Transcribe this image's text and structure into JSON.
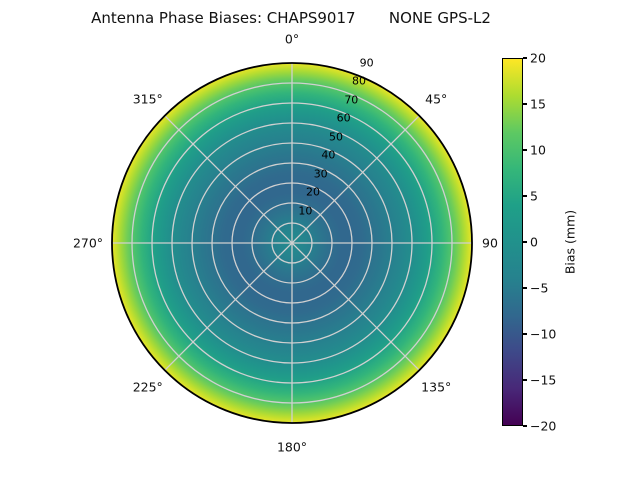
{
  "title": "Antenna Phase Biases: CHAPS9017       NONE GPS-L2",
  "chart_data": {
    "type": "heatmap",
    "projection": "polar",
    "title": "Antenna Phase Biases: CHAPS9017       NONE GPS-L2",
    "station": "CHAPS9017",
    "signal": "NONE GPS-L2",
    "grid": true,
    "angular_tick_labels": [
      "0°",
      "45°",
      "90",
      "135°",
      "180°",
      "225°",
      "270°",
      "315°"
    ],
    "angular_tick_degrees": [
      0,
      45,
      90,
      135,
      180,
      225,
      270,
      315
    ],
    "radial_tick_labels": [
      "10",
      "20",
      "30",
      "40",
      "50",
      "60",
      "70",
      "80",
      "90"
    ],
    "radial_tick_values": [
      10,
      20,
      30,
      40,
      50,
      60,
      70,
      80,
      90
    ],
    "radial_max": 90,
    "radial_label_angle_deg": 22.5,
    "colormap": "viridis",
    "colormap_stops": [
      "#440154",
      "#482878",
      "#3e4989",
      "#31688e",
      "#26828e",
      "#21918c",
      "#1fa088",
      "#35b779",
      "#5ec962",
      "#addc30",
      "#fde725"
    ],
    "colorbar": {
      "label": "Bias (mm)",
      "vmin": -20,
      "vmax": 20,
      "tick_values": [
        20,
        15,
        10,
        5,
        0,
        -5,
        -10,
        -15,
        -20
      ],
      "tick_labels": [
        "20",
        "15",
        "10",
        "5",
        "0",
        "−5",
        "−10",
        "−15",
        "−20"
      ],
      "position": "right"
    },
    "radial_profile": {
      "description": "Azimuthally symmetric phase bias (mm) vs zenith angle (deg), read from heatmap colors",
      "zenith_deg": [
        0,
        5,
        10,
        15,
        20,
        25,
        30,
        35,
        40,
        45,
        50,
        55,
        60,
        65,
        70,
        75,
        80,
        85,
        90
      ],
      "bias_mm": [
        -2,
        -3,
        -4.5,
        -6,
        -7.2,
        -8,
        -8,
        -7.5,
        -6.5,
        -5.5,
        -4.5,
        -3,
        -1,
        1.5,
        4.5,
        7.5,
        11,
        15,
        19
      ]
    },
    "grid_color": "#d0d0d0",
    "outline_color": "#000000"
  }
}
